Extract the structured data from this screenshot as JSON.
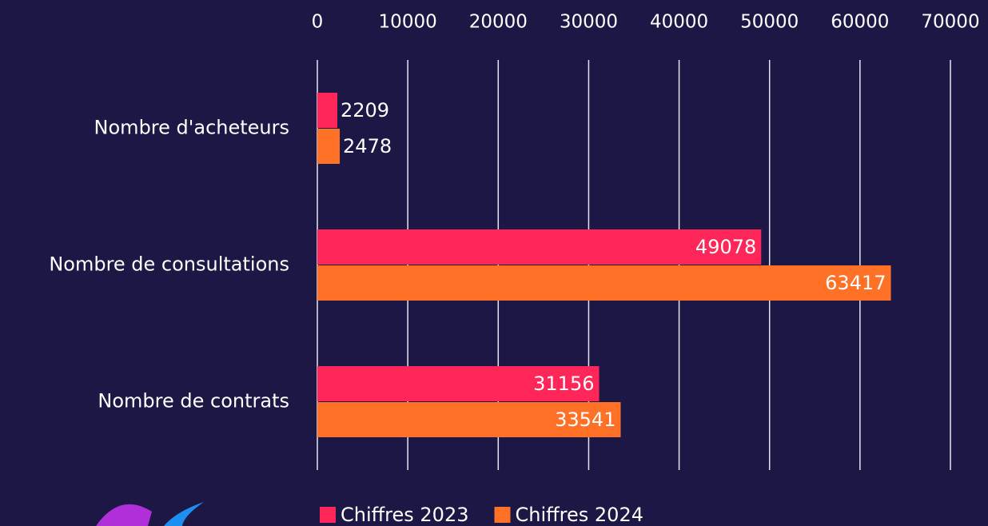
{
  "chart_data": {
    "type": "bar",
    "orientation": "horizontal",
    "categories": [
      "Nombre d'acheteurs",
      "Nombre de consultations",
      "Nombre de contrats"
    ],
    "series": [
      {
        "name": "Chiffres 2023",
        "color": "#ff2759",
        "values": [
          2209,
          49078,
          31156
        ]
      },
      {
        "name": "Chiffres 2024",
        "color": "#ff7127",
        "values": [
          2478,
          63417,
          33541
        ]
      }
    ],
    "xlim": [
      0,
      70000
    ],
    "xticks": [
      0,
      10000,
      20000,
      30000,
      40000,
      50000,
      60000,
      70000
    ],
    "grid": true,
    "legend": "bottom"
  }
}
